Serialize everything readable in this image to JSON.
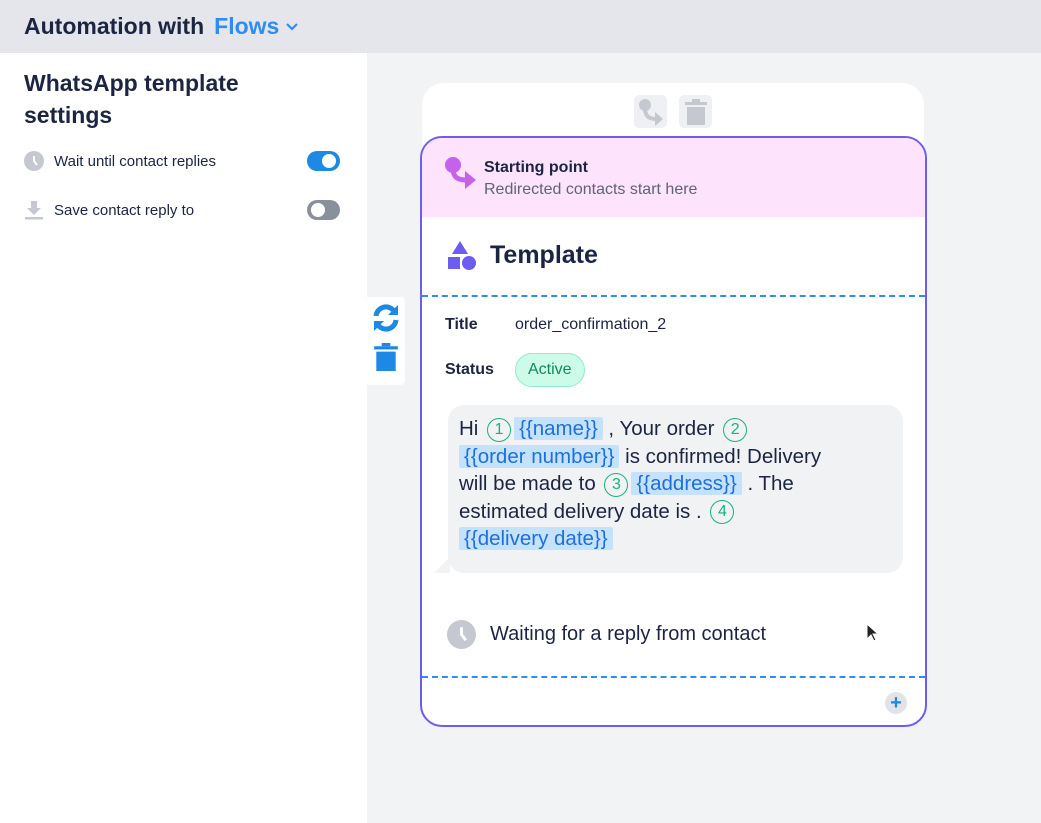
{
  "header": {
    "title": "Automation with",
    "product": "Flows",
    "chevron_icon": "chevron-down-icon"
  },
  "settings": {
    "title": "WhatsApp template settings",
    "options": [
      {
        "label": "Wait until contact replies",
        "icon": "clock-icon",
        "enabled": true
      },
      {
        "label": "Save contact reply to",
        "icon": "download-icon",
        "enabled": false
      }
    ]
  },
  "node": {
    "start": {
      "title": "Starting point",
      "subtitle": "Redirected contacts start here"
    },
    "type": "Template",
    "title_label": "Title",
    "title_value": "order_confirmation_2",
    "status_label": "Status",
    "status_value": "Active",
    "message_lines": [
      [
        {
          "t": "Hi"
        },
        {
          "n": "1"
        },
        {
          "v": "{{name}}"
        },
        {
          "t": " , Your order"
        },
        {
          "n": "2"
        }
      ],
      [
        {
          "v": "{{order number}}"
        },
        {
          "t": " is confirmed! Delivery"
        }
      ],
      [
        {
          "t": "will be made to"
        },
        {
          "n": "3"
        },
        {
          "v": "{{address}}"
        },
        {
          "t": " . The"
        }
      ],
      [
        {
          "t": "estimated delivery date is ."
        },
        {
          "n": "4"
        }
      ],
      [
        {
          "v": "{{delivery date}}"
        }
      ]
    ],
    "waiting": "Waiting for a reply from contact"
  },
  "colors": {
    "accent": "#2f8cf0",
    "node_border": "#6c5cf0",
    "start_bg": "#fde3fc",
    "active_badge": "#cdfbea"
  }
}
